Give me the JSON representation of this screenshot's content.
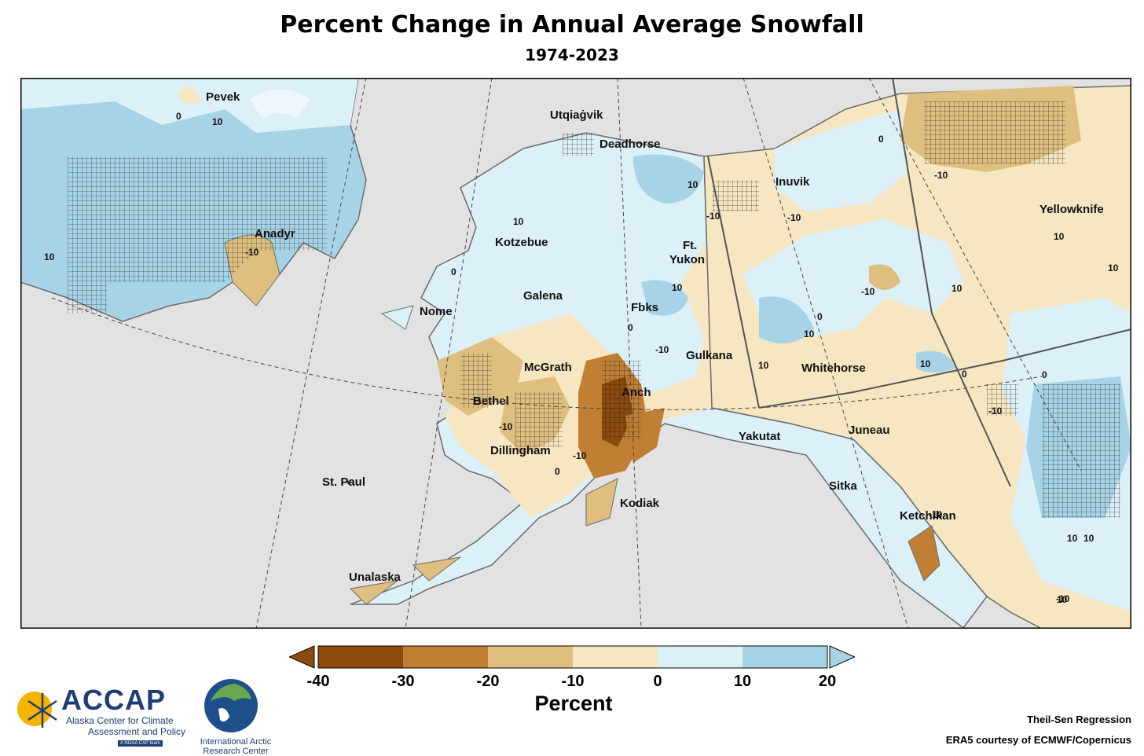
{
  "title": "Percent Change in Annual Average Snowfall",
  "subtitle": "1974-2023",
  "colors": {
    "land_gray": "#e2e2e2",
    "ocean_gray": "#e2e2e2",
    "bin_m40_m30": "#8c4a0c",
    "bin_m30_m20": "#c07f33",
    "bin_m20_m10": "#dfbf7f",
    "bin_m10_0": "#f6e6c1",
    "bin_0_10": "#dcf0f8",
    "bin_10_20": "#a6d4e6",
    "hatch": "#222222",
    "coast": "#6b6b6b"
  },
  "cities": [
    {
      "name": "Pevek"
    },
    {
      "name": "Utqiaġvik"
    },
    {
      "name": "Deadhorse"
    },
    {
      "name": "Inuvik"
    },
    {
      "name": "Yellowknife"
    },
    {
      "name": "Anadyr"
    },
    {
      "name": "Kotzebue"
    },
    {
      "name": "Ft."
    },
    {
      "name": "Yukon"
    },
    {
      "name": "Nome"
    },
    {
      "name": "Galena"
    },
    {
      "name": "Fbks"
    },
    {
      "name": "Gulkana"
    },
    {
      "name": "Whitehorse"
    },
    {
      "name": "McGrath"
    },
    {
      "name": "Bethel"
    },
    {
      "name": "Anch"
    },
    {
      "name": "Dillingham"
    },
    {
      "name": "Yakutat"
    },
    {
      "name": "Juneau"
    },
    {
      "name": "St. Paul"
    },
    {
      "name": "Kodiak"
    },
    {
      "name": "Sitka"
    },
    {
      "name": "Ketchikan"
    },
    {
      "name": "Unalaska"
    }
  ],
  "contour_labels": [
    "0",
    "10",
    "0",
    "-10",
    "-10",
    "10",
    "10",
    "0",
    "10",
    "-10",
    "10",
    "0",
    "-10",
    "-10",
    "10",
    "10",
    "0",
    "10",
    "0",
    "-10",
    "10",
    "0",
    "-10",
    "-10",
    "10",
    "0",
    "-10",
    "10",
    "10",
    "10",
    "10",
    "-10",
    "-10"
  ],
  "colorbar": {
    "ticks": [
      "-40",
      "-30",
      "-20",
      "-10",
      "0",
      "10",
      "20"
    ],
    "label": "Percent"
  },
  "credits": {
    "method": "Theil-Sen Regression",
    "data": "ERA5 courtesy of ECMWF/Copernicus"
  },
  "logos": {
    "accap_name": "ACCAP",
    "accap_line1": "Alaska Center for Climate",
    "accap_line2": "Assessment and Policy",
    "accap_tag": "A NOAA CAP team",
    "iarc_line1": "International Arctic",
    "iarc_line2": "Research Center"
  }
}
